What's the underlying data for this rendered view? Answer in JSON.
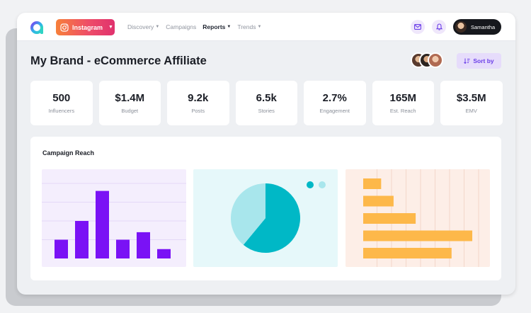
{
  "nav": {
    "platform_label": "Instagram",
    "items": [
      {
        "label": "Discovery",
        "active": false,
        "caret": true
      },
      {
        "label": "Campaigns",
        "active": false,
        "caret": false
      },
      {
        "label": "Reports",
        "active": true,
        "caret": true
      },
      {
        "label": "Trends",
        "active": false,
        "caret": true
      }
    ]
  },
  "user": {
    "name": "Samantha"
  },
  "page": {
    "title": "My Brand - eCommerce Affiliate",
    "sort_label": "Sort by"
  },
  "stats": [
    {
      "value": "500",
      "label": "Influencers"
    },
    {
      "value": "$1.4M",
      "label": "Budget"
    },
    {
      "value": "9.2k",
      "label": "Posts"
    },
    {
      "value": "6.5k",
      "label": "Stories"
    },
    {
      "value": "2.7%",
      "label": "Engagement"
    },
    {
      "value": "165M",
      "label": "Est. Reach"
    },
    {
      "value": "$3.5M",
      "label": "EMV"
    }
  ],
  "campaign_reach": {
    "title": "Campaign Reach"
  },
  "colors": {
    "accent": "#6a3de8",
    "bar_purple": "#7a12f5",
    "pie_dark": "#00b8c6",
    "pie_light": "#a8e6ec",
    "hbar_orange": "#fdb84a"
  },
  "icons": {
    "logo": "brand-logo-icon",
    "mail": "mail-icon",
    "bell": "bell-icon",
    "sort": "sort-icon"
  },
  "chart_data": [
    {
      "type": "bar",
      "values": [
        5,
        10,
        18,
        5,
        7,
        2.5
      ],
      "ylim": [
        0,
        20
      ]
    },
    {
      "type": "pie",
      "values": [
        61,
        39
      ],
      "colors": [
        "#00b8c6",
        "#a8e6ec"
      ]
    },
    {
      "type": "bar",
      "orientation": "horizontal",
      "values": [
        13,
        22,
        38,
        79,
        64
      ],
      "xlim": [
        0,
        100
      ]
    }
  ]
}
